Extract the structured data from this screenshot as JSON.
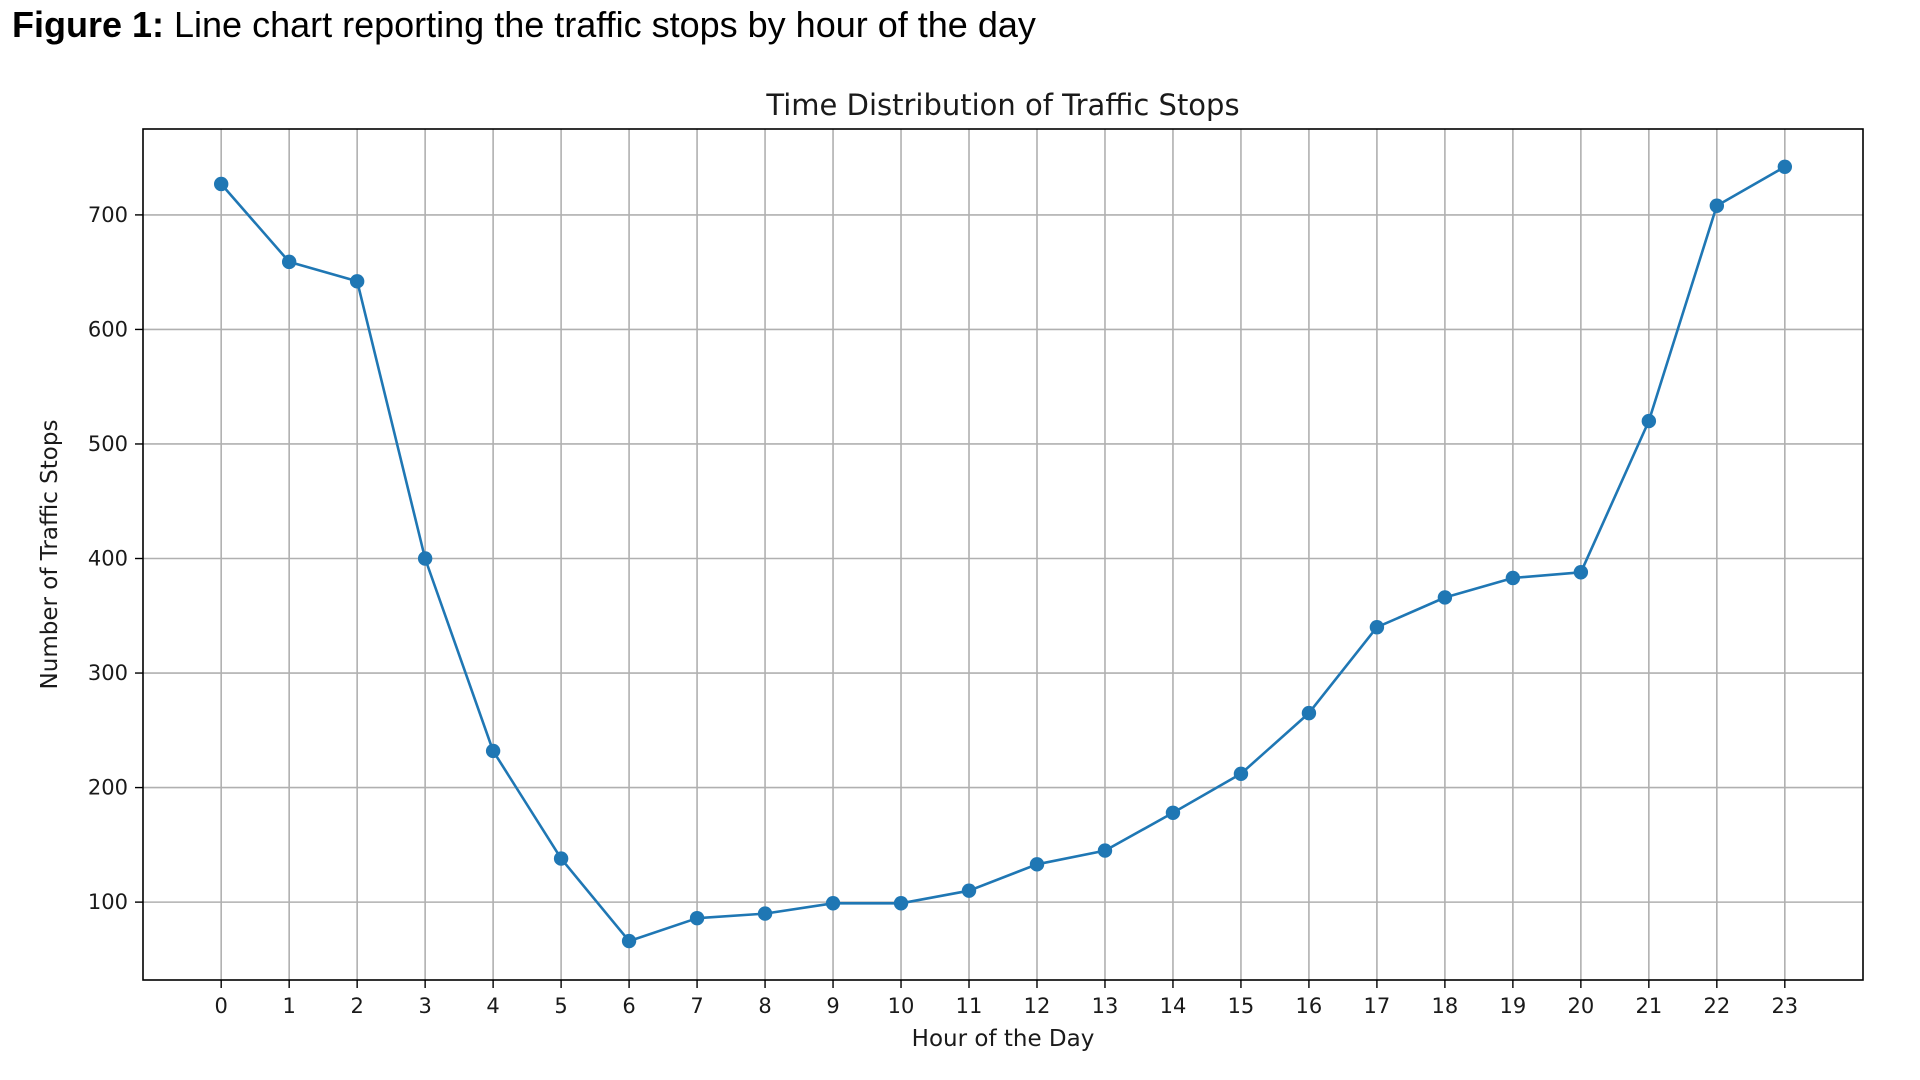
{
  "figure_caption": {
    "lead": "Figure 1:",
    "text": " Line chart reporting the traffic stops by hour of the day"
  },
  "chart_data": {
    "type": "line",
    "title": "Time Distribution of Traffic Stops",
    "xlabel": "Hour of the Day",
    "ylabel": "Number of Traffic Stops",
    "x": [
      0,
      1,
      2,
      3,
      4,
      5,
      6,
      7,
      8,
      9,
      10,
      11,
      12,
      13,
      14,
      15,
      16,
      17,
      18,
      19,
      20,
      21,
      22,
      23
    ],
    "x_tick_labels": [
      "0",
      "1",
      "2",
      "3",
      "4",
      "5",
      "6",
      "7",
      "8",
      "9",
      "10",
      "11",
      "12",
      "13",
      "14",
      "15",
      "16",
      "17",
      "18",
      "19",
      "20",
      "21",
      "22",
      "23"
    ],
    "series": [
      {
        "values": [
          727,
          659,
          642,
          400,
          232,
          138,
          66,
          86,
          90,
          99,
          99,
          110,
          133,
          145,
          178,
          212,
          265,
          340,
          366,
          383,
          388,
          520,
          708,
          742
        ],
        "color": "#1f77b4",
        "marker": "circle"
      }
    ],
    "xlim": [
      -1.15,
      24.15
    ],
    "ylim": [
      32,
      775
    ],
    "y_ticks": [
      100,
      200,
      300,
      400,
      500,
      600,
      700
    ],
    "y_tick_labels": [
      "100",
      "200",
      "300",
      "400",
      "500",
      "600",
      "700"
    ],
    "grid": true,
    "grid_color": "#b0b0b0",
    "legend": "none"
  }
}
